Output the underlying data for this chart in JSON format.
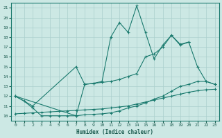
{
  "xlabel": "Humidex (Indice chaleur)",
  "background_color": "#cce8e4",
  "grid_color": "#aacfcc",
  "line_color": "#1a7a6e",
  "xlim": [
    -0.5,
    23.5
  ],
  "ylim": [
    9.5,
    21.5
  ],
  "xticks": [
    0,
    1,
    2,
    3,
    4,
    5,
    6,
    7,
    8,
    9,
    10,
    11,
    12,
    13,
    14,
    15,
    16,
    17,
    18,
    19,
    20,
    21,
    22,
    23
  ],
  "yticks": [
    10,
    11,
    12,
    13,
    14,
    15,
    16,
    17,
    18,
    19,
    20,
    21
  ],
  "line1_x": [
    0,
    2,
    7,
    8,
    9,
    10,
    11,
    12,
    13,
    14,
    15,
    16,
    17,
    18,
    19,
    20
  ],
  "line1_y": [
    12.0,
    11.0,
    15.0,
    13.2,
    13.3,
    13.5,
    18.0,
    19.5,
    18.5,
    21.2,
    18.5,
    15.8,
    17.2,
    18.2,
    17.2,
    17.5
  ],
  "line2_x": [
    0,
    1,
    2,
    3,
    4,
    5,
    6,
    7,
    8,
    9,
    10,
    11,
    12,
    13,
    14,
    15,
    16,
    17,
    18,
    19,
    20,
    21,
    22,
    23
  ],
  "line2_y": [
    12.0,
    11.5,
    10.8,
    10.0,
    10.0,
    10.0,
    10.0,
    10.0,
    10.1,
    10.15,
    10.2,
    10.3,
    10.5,
    10.8,
    11.0,
    11.3,
    11.7,
    12.0,
    12.5,
    13.0,
    13.2,
    13.5,
    13.5,
    13.2
  ],
  "line3_x": [
    0,
    1,
    2,
    3,
    4,
    5,
    6,
    7,
    8,
    9,
    10,
    11,
    12,
    13,
    14,
    15,
    16,
    17,
    18,
    19,
    20,
    21,
    22,
    23
  ],
  "line3_y": [
    10.2,
    10.25,
    10.3,
    10.35,
    10.4,
    10.45,
    10.5,
    10.55,
    10.6,
    10.65,
    10.7,
    10.8,
    10.9,
    11.0,
    11.2,
    11.4,
    11.6,
    11.8,
    12.0,
    12.2,
    12.4,
    12.55,
    12.65,
    12.7
  ],
  "line4_x": [
    0,
    7,
    8,
    9,
    10,
    11,
    12,
    13,
    14,
    15,
    16,
    17,
    18,
    19,
    20,
    21,
    22,
    23
  ],
  "line4_y": [
    12.0,
    10.0,
    13.2,
    13.3,
    13.4,
    13.5,
    13.7,
    14.0,
    14.3,
    16.0,
    16.3,
    17.0,
    18.2,
    17.3,
    17.5,
    15.0,
    13.5,
    13.2
  ]
}
